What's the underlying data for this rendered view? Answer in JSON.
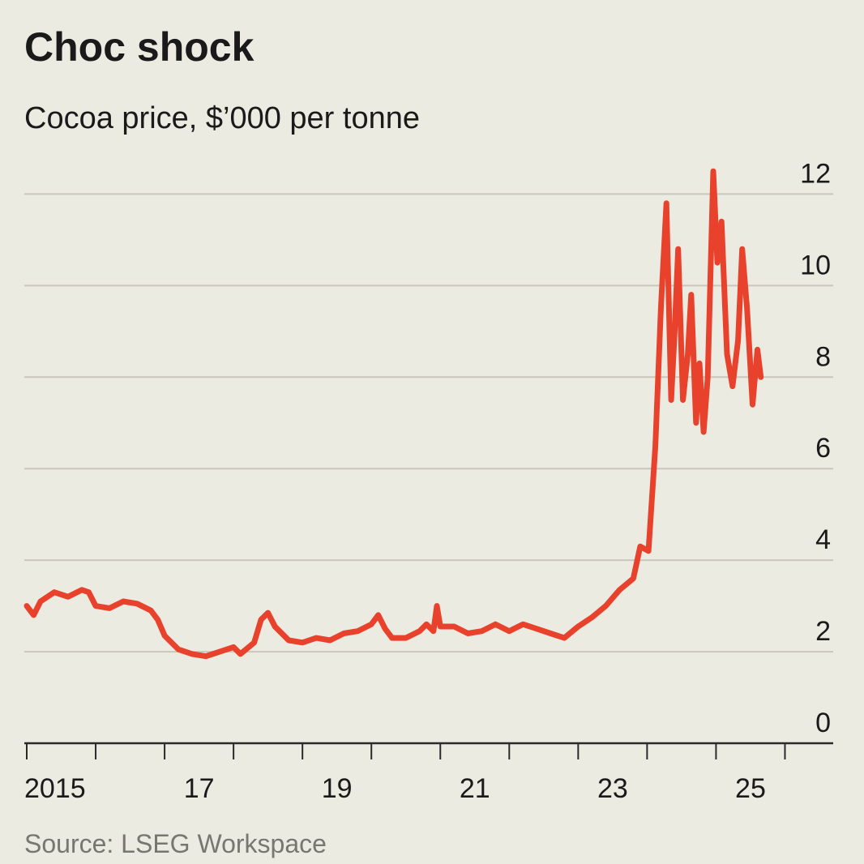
{
  "chart_data": {
    "type": "line",
    "title": "Choc shock",
    "subtitle": "Cocoa price, $’000 per tonne",
    "source": "Source: LSEG Workspace",
    "color": "#e8412c",
    "x": [
      2015.0,
      2015.1,
      2015.2,
      2015.4,
      2015.6,
      2015.8,
      2015.9,
      2016.0,
      2016.2,
      2016.4,
      2016.6,
      2016.8,
      2016.9,
      2017.0,
      2017.2,
      2017.4,
      2017.6,
      2017.8,
      2018.0,
      2018.1,
      2018.3,
      2018.4,
      2018.5,
      2018.6,
      2018.8,
      2019.0,
      2019.2,
      2019.4,
      2019.6,
      2019.8,
      2020.0,
      2020.1,
      2020.2,
      2020.3,
      2020.5,
      2020.7,
      2020.8,
      2020.9,
      2020.95,
      2021.0,
      2021.2,
      2021.4,
      2021.6,
      2021.8,
      2022.0,
      2022.2,
      2022.4,
      2022.6,
      2022.8,
      2023.0,
      2023.2,
      2023.4,
      2023.6,
      2023.8,
      2023.9,
      2024.02,
      2024.12,
      2024.2,
      2024.28,
      2024.35,
      2024.4,
      2024.45,
      2024.52,
      2024.59,
      2024.64,
      2024.71,
      2024.76,
      2024.82,
      2024.88,
      2024.96,
      2025.02,
      2025.08,
      2025.16,
      2025.24,
      2025.32,
      2025.38,
      2025.45,
      2025.53,
      2025.6,
      2025.65
    ],
    "values": [
      3.0,
      2.8,
      3.1,
      3.3,
      3.2,
      3.35,
      3.3,
      3.0,
      2.95,
      3.1,
      3.05,
      2.9,
      2.7,
      2.35,
      2.05,
      1.95,
      1.9,
      2.0,
      2.1,
      1.95,
      2.2,
      2.7,
      2.85,
      2.55,
      2.25,
      2.2,
      2.3,
      2.25,
      2.4,
      2.45,
      2.6,
      2.8,
      2.5,
      2.3,
      2.3,
      2.45,
      2.6,
      2.45,
      3.0,
      2.55,
      2.55,
      2.4,
      2.45,
      2.6,
      2.45,
      2.6,
      2.5,
      2.4,
      2.3,
      2.55,
      2.75,
      3.0,
      3.35,
      3.6,
      4.3,
      4.2,
      6.5,
      9.5,
      11.8,
      7.5,
      9.0,
      10.8,
      7.5,
      8.5,
      9.8,
      7.0,
      8.3,
      6.8,
      8.0,
      12.5,
      10.5,
      11.4,
      8.5,
      7.8,
      8.8,
      10.8,
      9.5,
      7.4,
      8.6,
      8.0
    ],
    "xlim": [
      2015,
      2026.7
    ],
    "xticks": [
      2015,
      2016,
      2017,
      2018,
      2019,
      2020,
      2021,
      2022,
      2023,
      2024,
      2025,
      2026
    ],
    "xtick_labels": [
      {
        "value": 2015,
        "label": "2015"
      },
      {
        "value": 2017,
        "label": "17"
      },
      {
        "value": 2019,
        "label": "19"
      },
      {
        "value": 2021,
        "label": "21"
      },
      {
        "value": 2023,
        "label": "23"
      },
      {
        "value": 2025,
        "label": "25"
      }
    ],
    "ylim": [
      0,
      13.3
    ],
    "yticks": [
      0,
      2,
      4,
      6,
      8,
      10,
      12
    ],
    "grid": true
  }
}
